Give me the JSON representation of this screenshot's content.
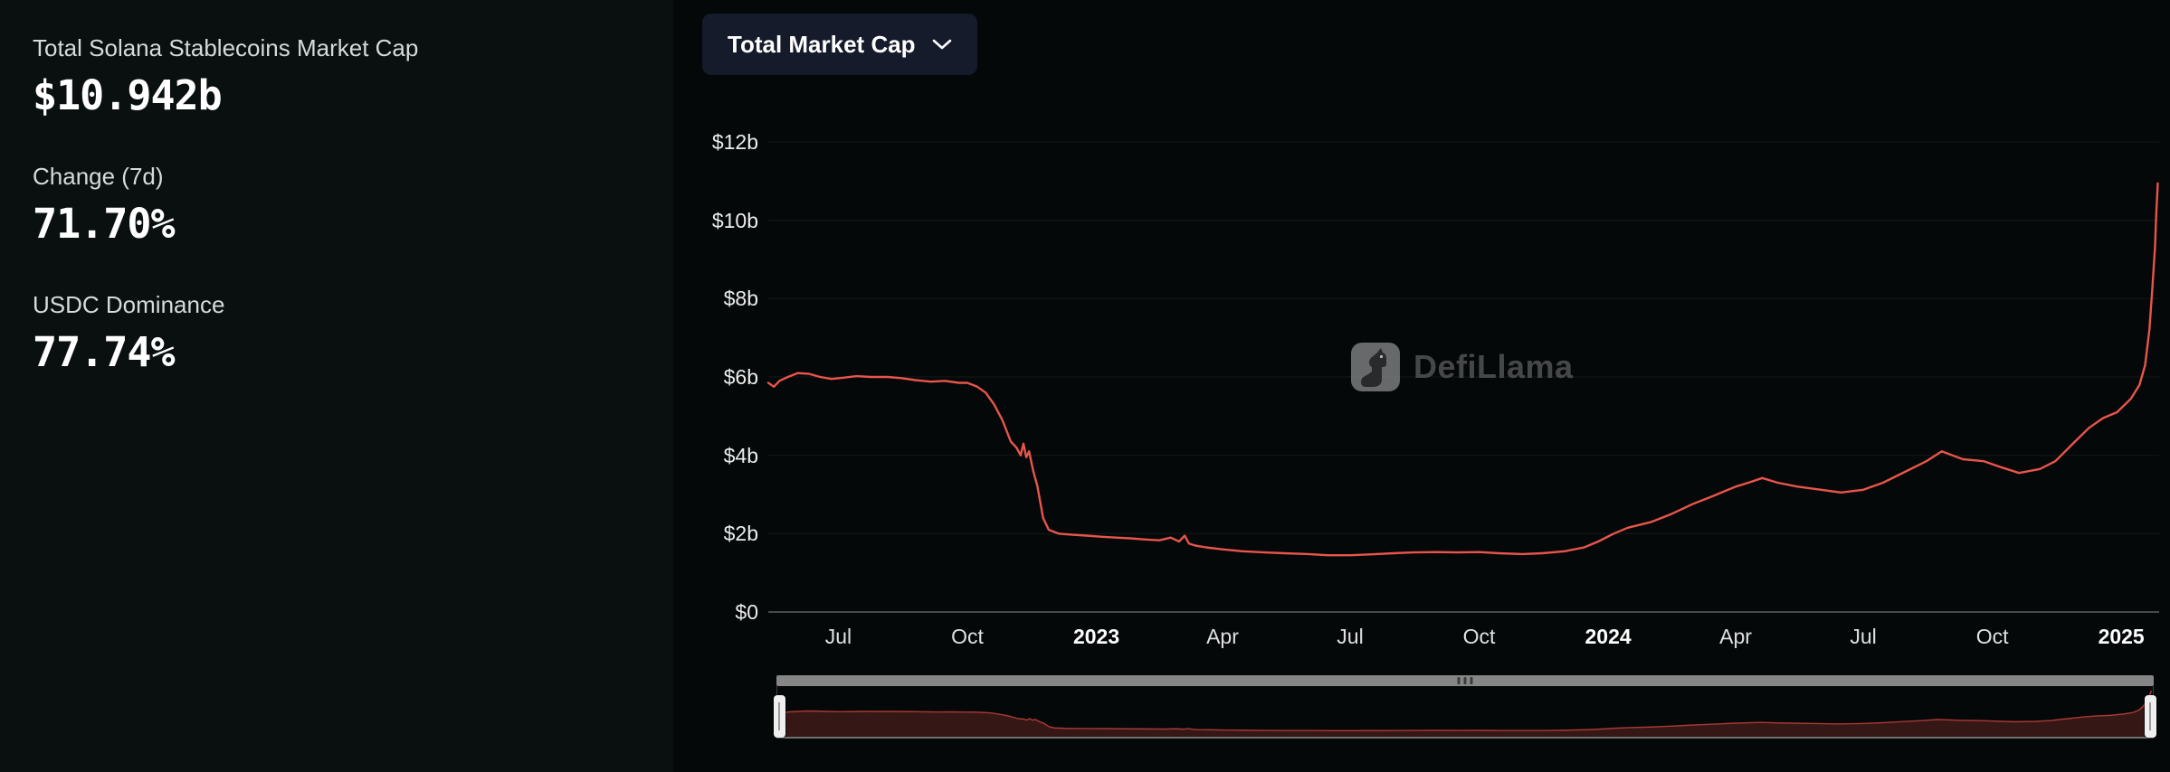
{
  "stats": {
    "market_cap_label": "Total Solana Stablecoins Market Cap",
    "market_cap_value": "$10.942b",
    "change_label": "Change (7d)",
    "change_value": "71.70%",
    "dominance_label": "USDC Dominance",
    "dominance_value": "77.74%"
  },
  "toolbar": {
    "selector_label": "Total Market Cap",
    "chevron_icon": "chevron-down"
  },
  "watermark": {
    "text": "DefiLlama",
    "icon": "defillama-llama-logo"
  },
  "chart_data": {
    "type": "line",
    "title": "Total Market Cap",
    "unit": "USD billions",
    "legend": "none",
    "grid": "horizontal-faint",
    "x_domain": [
      "2022-05-12",
      "2025-01-28"
    ],
    "y_domain": [
      0,
      12
    ],
    "y_ticks": [
      {
        "label": "$0",
        "value": 0
      },
      {
        "label": "$2b",
        "value": 2
      },
      {
        "label": "$4b",
        "value": 4
      },
      {
        "label": "$6b",
        "value": 6
      },
      {
        "label": "$8b",
        "value": 8
      },
      {
        "label": "$10b",
        "value": 10
      },
      {
        "label": "$12b",
        "value": 12
      }
    ],
    "x_ticks": [
      {
        "label": "Jul",
        "date": "2022-07-01",
        "bold": false
      },
      {
        "label": "Oct",
        "date": "2022-10-01",
        "bold": false
      },
      {
        "label": "2023",
        "date": "2023-01-01",
        "bold": true
      },
      {
        "label": "Apr",
        "date": "2023-04-01",
        "bold": false
      },
      {
        "label": "Jul",
        "date": "2023-07-01",
        "bold": false
      },
      {
        "label": "Oct",
        "date": "2023-10-01",
        "bold": false
      },
      {
        "label": "2024",
        "date": "2024-01-01",
        "bold": true
      },
      {
        "label": "Apr",
        "date": "2024-04-01",
        "bold": false
      },
      {
        "label": "Jul",
        "date": "2024-07-01",
        "bold": false
      },
      {
        "label": "Oct",
        "date": "2024-10-01",
        "bold": false
      },
      {
        "label": "2025",
        "date": "2025-01-01",
        "bold": true
      }
    ],
    "series": [
      {
        "name": "Total Solana Stablecoins Market Cap",
        "color": "#e8554b",
        "points": [
          [
            "2022-05-12",
            5.85
          ],
          [
            "2022-05-16",
            5.75
          ],
          [
            "2022-05-20",
            5.9
          ],
          [
            "2022-05-26",
            6.0
          ],
          [
            "2022-06-02",
            6.1
          ],
          [
            "2022-06-10",
            6.08
          ],
          [
            "2022-06-18",
            6.0
          ],
          [
            "2022-06-26",
            5.95
          ],
          [
            "2022-07-04",
            5.98
          ],
          [
            "2022-07-14",
            6.02
          ],
          [
            "2022-07-24",
            6.0
          ],
          [
            "2022-08-05",
            6.0
          ],
          [
            "2022-08-15",
            5.97
          ],
          [
            "2022-08-25",
            5.92
          ],
          [
            "2022-09-05",
            5.88
          ],
          [
            "2022-09-15",
            5.9
          ],
          [
            "2022-09-25",
            5.85
          ],
          [
            "2022-10-01",
            5.85
          ],
          [
            "2022-10-08",
            5.75
          ],
          [
            "2022-10-14",
            5.6
          ],
          [
            "2022-10-20",
            5.3
          ],
          [
            "2022-10-26",
            4.9
          ],
          [
            "2022-11-01",
            4.35
          ],
          [
            "2022-11-05",
            4.2
          ],
          [
            "2022-11-08",
            4.0
          ],
          [
            "2022-11-10",
            4.3
          ],
          [
            "2022-11-12",
            3.95
          ],
          [
            "2022-11-14",
            4.1
          ],
          [
            "2022-11-17",
            3.6
          ],
          [
            "2022-11-20",
            3.2
          ],
          [
            "2022-11-24",
            2.4
          ],
          [
            "2022-11-28",
            2.1
          ],
          [
            "2022-12-05",
            2.0
          ],
          [
            "2022-12-15",
            1.97
          ],
          [
            "2022-12-25",
            1.95
          ],
          [
            "2023-01-05",
            1.92
          ],
          [
            "2023-01-15",
            1.9
          ],
          [
            "2023-01-25",
            1.88
          ],
          [
            "2023-02-05",
            1.85
          ],
          [
            "2023-02-15",
            1.83
          ],
          [
            "2023-02-23",
            1.9
          ],
          [
            "2023-03-01",
            1.8
          ],
          [
            "2023-03-05",
            1.95
          ],
          [
            "2023-03-08",
            1.75
          ],
          [
            "2023-03-12",
            1.7
          ],
          [
            "2023-03-20",
            1.65
          ],
          [
            "2023-04-01",
            1.6
          ],
          [
            "2023-04-15",
            1.55
          ],
          [
            "2023-05-01",
            1.52
          ],
          [
            "2023-05-15",
            1.5
          ],
          [
            "2023-06-01",
            1.48
          ],
          [
            "2023-06-15",
            1.45
          ],
          [
            "2023-07-01",
            1.45
          ],
          [
            "2023-07-15",
            1.47
          ],
          [
            "2023-08-01",
            1.5
          ],
          [
            "2023-08-15",
            1.52
          ],
          [
            "2023-09-01",
            1.53
          ],
          [
            "2023-09-15",
            1.52
          ],
          [
            "2023-10-01",
            1.53
          ],
          [
            "2023-10-15",
            1.5
          ],
          [
            "2023-11-01",
            1.48
          ],
          [
            "2023-11-15",
            1.5
          ],
          [
            "2023-12-01",
            1.55
          ],
          [
            "2023-12-15",
            1.65
          ],
          [
            "2023-12-25",
            1.8
          ],
          [
            "2024-01-05",
            2.0
          ],
          [
            "2024-01-15",
            2.15
          ],
          [
            "2024-02-01",
            2.3
          ],
          [
            "2024-02-15",
            2.5
          ],
          [
            "2024-03-01",
            2.75
          ],
          [
            "2024-03-15",
            2.95
          ],
          [
            "2024-04-01",
            3.2
          ],
          [
            "2024-04-10",
            3.3
          ],
          [
            "2024-04-20",
            3.42
          ],
          [
            "2024-05-01",
            3.3
          ],
          [
            "2024-05-15",
            3.2
          ],
          [
            "2024-06-01",
            3.12
          ],
          [
            "2024-06-15",
            3.05
          ],
          [
            "2024-07-01",
            3.12
          ],
          [
            "2024-07-15",
            3.3
          ],
          [
            "2024-08-01",
            3.6
          ],
          [
            "2024-08-15",
            3.85
          ],
          [
            "2024-08-26",
            4.1
          ],
          [
            "2024-09-10",
            3.9
          ],
          [
            "2024-09-25",
            3.85
          ],
          [
            "2024-10-07",
            3.7
          ],
          [
            "2024-10-20",
            3.55
          ],
          [
            "2024-11-04",
            3.65
          ],
          [
            "2024-11-15",
            3.85
          ],
          [
            "2024-11-22",
            4.1
          ],
          [
            "2024-11-29",
            4.35
          ],
          [
            "2024-12-09",
            4.7
          ],
          [
            "2024-12-19",
            4.95
          ],
          [
            "2024-12-29",
            5.1
          ],
          [
            "2025-01-08",
            5.45
          ],
          [
            "2025-01-14",
            5.8
          ],
          [
            "2025-01-18",
            6.3
          ],
          [
            "2025-01-21",
            7.2
          ],
          [
            "2025-01-23",
            8.2
          ],
          [
            "2025-01-25",
            9.3
          ],
          [
            "2025-01-26",
            10.2
          ],
          [
            "2025-01-27",
            10.942
          ]
        ]
      }
    ]
  }
}
